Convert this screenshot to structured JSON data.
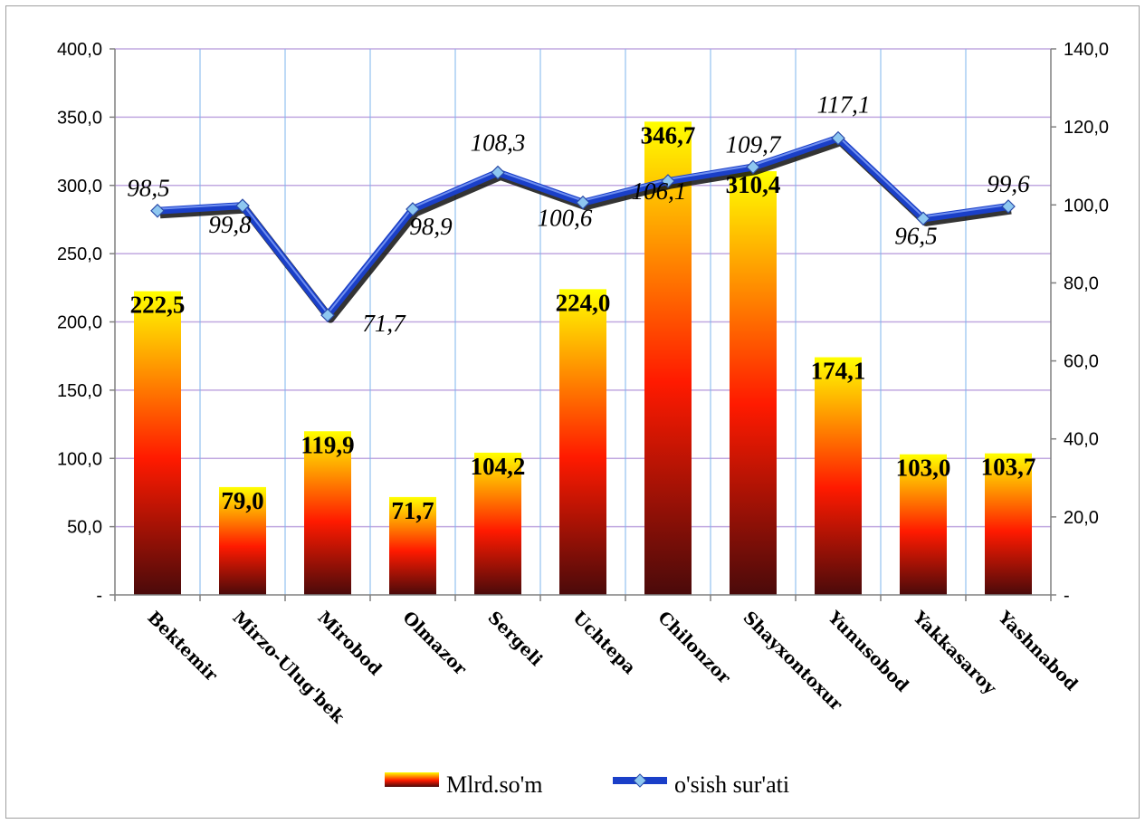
{
  "chart_data": {
    "type": "bar",
    "categories": [
      "Bektemir",
      "Mirzo-Ulug'bek",
      "Mirobod",
      "Olmazor",
      "Sergeli",
      "Uchtepa",
      "Chilonzor",
      "Shayxontoxur",
      "Yunusobod",
      "Yakkasaroy",
      "Yashnabod"
    ],
    "series": [
      {
        "name": "Mlrd.so'm",
        "type": "bar",
        "axis": "left",
        "values": [
          222.5,
          79.0,
          119.9,
          71.7,
          104.2,
          224.0,
          346.7,
          310.4,
          174.1,
          103.0,
          103.7
        ],
        "labels": [
          "222,5",
          "79,0",
          "119,9",
          "71,7",
          "104,2",
          "224,0",
          "346,7",
          "310,4",
          "174,1",
          "103,0",
          "103,7"
        ]
      },
      {
        "name": "o'sish sur'ati",
        "type": "line",
        "axis": "right",
        "values": [
          98.5,
          99.8,
          71.7,
          98.9,
          108.3,
          100.6,
          106.1,
          109.7,
          117.1,
          96.5,
          99.6
        ],
        "labels": [
          "98,5",
          "99,8",
          "71,7",
          "98,9",
          "108,3",
          "100,6",
          "106,1",
          "109,7",
          "117,1",
          "96,5",
          "99,6"
        ]
      }
    ],
    "left_axis": {
      "ylim": [
        0,
        400
      ],
      "ticks": [
        0,
        50,
        100,
        150,
        200,
        250,
        300,
        350,
        400
      ],
      "tick_labels": [
        "-",
        "50,0",
        "100,0",
        "150,0",
        "200,0",
        "250,0",
        "300,0",
        "350,0",
        "400,0"
      ]
    },
    "right_axis": {
      "ylim": [
        0,
        140
      ],
      "ticks": [
        0,
        20,
        40,
        60,
        80,
        100,
        120,
        140
      ],
      "tick_labels": [
        "-",
        "20,0",
        "40,0",
        "60,0",
        "80,0",
        "100,0",
        "120,0",
        "140,0"
      ]
    },
    "grid": true,
    "legend": "bottom",
    "colors": {
      "bar_top": "#ffff00",
      "bar_mid": "#ff1a00",
      "bar_bottom": "#4a0a0a",
      "line": "#1a3fc8",
      "marker": "#8ec7f0",
      "grid_h": "#c0a8e0",
      "grid_v": "#7eb4ec"
    }
  }
}
